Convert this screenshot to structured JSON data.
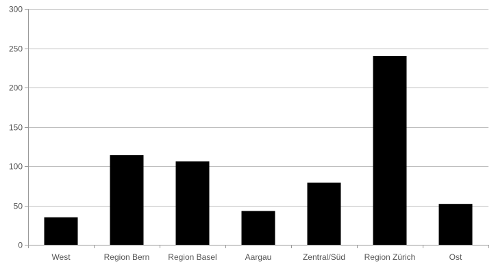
{
  "chart_data": {
    "type": "bar",
    "title": "",
    "xlabel": "",
    "ylabel": "",
    "categories": [
      "West",
      "Region Bern",
      "Region Basel",
      "Aargau",
      "Zentral/Süd",
      "Region Zürich",
      "Ost"
    ],
    "values": [
      35,
      114,
      106,
      43,
      79,
      240,
      52
    ],
    "ylim": [
      0,
      300
    ],
    "yticks": [
      0,
      50,
      100,
      150,
      200,
      250,
      300
    ],
    "ytick_labels": [
      "0",
      "50",
      "100",
      "150",
      "200",
      "250",
      "300"
    ],
    "grid": true,
    "legend": "none",
    "colors": {
      "bar": "#000000",
      "grid": "#bfbfbf",
      "axis": "#999999",
      "tick_text": "#555555"
    }
  }
}
